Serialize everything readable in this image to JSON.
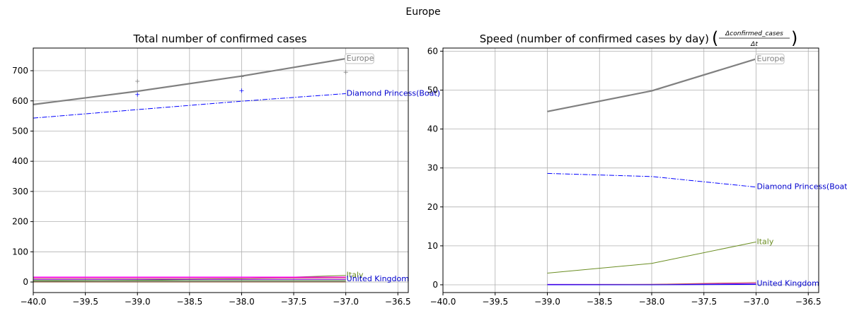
{
  "suptitle": "Europe",
  "chart_data": [
    {
      "type": "line",
      "title": "Total number of confirmed cases",
      "xlim": [
        -40.0,
        -36.4
      ],
      "ylim": [
        -35,
        775
      ],
      "xticks": [
        -40.0,
        -39.5,
        -39.0,
        -38.5,
        -38.0,
        -37.5,
        -37.0,
        -36.5
      ],
      "xtick_labels": [
        "−40.0",
        "−39.5",
        "−39.0",
        "−38.5",
        "−38.0",
        "−37.5",
        "−37.0",
        "−36.5"
      ],
      "yticks": [
        0,
        100,
        200,
        300,
        400,
        500,
        600,
        700
      ],
      "ytick_labels": [
        "0",
        "100",
        "200",
        "300",
        "400",
        "500",
        "600",
        "700"
      ],
      "grid": true,
      "series": [
        {
          "name": "Europe",
          "color": "#808080",
          "style": "solid",
          "width": 2.2,
          "x": [
            -40.0,
            -39.0,
            -38.0,
            -37.0
          ],
          "y": [
            588,
            632,
            682,
            740
          ],
          "points": {
            "x": [
              -39.0,
              -38.0,
              -37.0
            ],
            "y": [
              665,
              680,
              695
            ]
          }
        },
        {
          "name": "Diamond Princess(Boat)",
          "color": "#0000ff",
          "style": "dashdot",
          "width": 1,
          "x": [
            -40.0,
            -39.0,
            -38.0,
            -37.0
          ],
          "y": [
            543,
            571,
            599,
            624
          ],
          "points": {
            "x": [
              -39.0,
              -38.0
            ],
            "y": [
              621,
              634
            ]
          }
        },
        {
          "name": "Italy",
          "color": "#6b8e23",
          "style": "solid",
          "width": 1,
          "x": [
            -40.0,
            -39.0,
            -38.0,
            -37.0
          ],
          "y": [
            3,
            6,
            11,
            22
          ]
        },
        {
          "name": "United Kingdom",
          "color": "#9400d3",
          "style": "solid",
          "width": 1,
          "x": [
            -40.0,
            -39.0,
            -38.0,
            -37.0
          ],
          "y": [
            9,
            9,
            9,
            9
          ]
        },
        {
          "name": "",
          "color": "#ff00ff",
          "style": "solid",
          "width": 1.5,
          "x": [
            -40.0,
            -39.0,
            -38.0,
            -37.0
          ],
          "y": [
            16,
            16,
            16,
            16
          ]
        },
        {
          "name": "",
          "color": "#cd5c5c",
          "style": "solid",
          "width": 1,
          "x": [
            -40.0,
            -39.0,
            -38.0,
            -37.0
          ],
          "y": [
            12,
            12,
            12,
            14
          ]
        },
        {
          "name": "",
          "color": "#2e8b57",
          "style": "solid",
          "width": 1,
          "x": [
            -40.0,
            -39.0,
            -38.0,
            -37.0
          ],
          "y": [
            5,
            5,
            5,
            5
          ]
        },
        {
          "name": "",
          "color": "#ff8c00",
          "style": "solid",
          "width": 1,
          "x": [
            -40.0,
            -39.0,
            -38.0,
            -37.0
          ],
          "y": [
            2,
            2,
            2,
            2
          ]
        },
        {
          "name": "",
          "color": "#1e90ff",
          "style": "solid",
          "width": 1,
          "x": [
            -40.0,
            -39.0,
            -38.0,
            -37.0
          ],
          "y": [
            1,
            1,
            1,
            1
          ]
        },
        {
          "name": "",
          "color": "#8b4513",
          "style": "solid",
          "width": 1,
          "x": [
            -40.0,
            -39.0,
            -38.0,
            -37.0
          ],
          "y": [
            0,
            0,
            0,
            0
          ]
        }
      ],
      "annotations": [
        {
          "text": "Europe",
          "x": -37.0,
          "y": 740,
          "color": "#808080",
          "boxed": true
        },
        {
          "text": "Diamond Princess(Boat)",
          "x": -37.0,
          "y": 624,
          "color": "#0000cd"
        },
        {
          "text": "Italy",
          "x": -37.0,
          "y": 22,
          "color": "#6b8e23"
        },
        {
          "text": "United Kingdom",
          "x": -37.0,
          "y": 9,
          "color": "#0000cd"
        }
      ]
    },
    {
      "type": "line",
      "title": "Speed (number of confirmed cases by day)",
      "title_formula": {
        "numerator": "Δconfirmed_cases",
        "denominator": "Δt"
      },
      "xlim": [
        -40.0,
        -36.4
      ],
      "ylim": [
        -2,
        60.8
      ],
      "xticks": [
        -40.0,
        -39.5,
        -39.0,
        -38.5,
        -38.0,
        -37.5,
        -37.0,
        -36.5
      ],
      "xtick_labels": [
        "−40.0",
        "−39.5",
        "−39.0",
        "−38.5",
        "−38.0",
        "−37.5",
        "−37.0",
        "−36.5"
      ],
      "yticks": [
        0,
        10,
        20,
        30,
        40,
        50,
        60
      ],
      "ytick_labels": [
        "0",
        "10",
        "20",
        "30",
        "40",
        "50",
        "60"
      ],
      "grid": true,
      "series": [
        {
          "name": "Europe",
          "color": "#808080",
          "style": "solid",
          "width": 2.2,
          "x": [
            -39.0,
            -38.0,
            -37.0
          ],
          "y": [
            44.5,
            49.8,
            58.0
          ]
        },
        {
          "name": "Diamond Princess(Boat)",
          "color": "#0000ff",
          "style": "dashdot",
          "width": 1,
          "x": [
            -39.0,
            -38.0,
            -37.0
          ],
          "y": [
            28.6,
            27.8,
            25.1
          ]
        },
        {
          "name": "Italy",
          "color": "#6b8e23",
          "style": "solid",
          "width": 1,
          "x": [
            -39.0,
            -38.0,
            -37.0
          ],
          "y": [
            3.0,
            5.5,
            11.0
          ]
        },
        {
          "name": "United Kingdom",
          "color": "#9400d3",
          "style": "solid",
          "width": 1,
          "x": [
            -39.0,
            -38.0,
            -37.0
          ],
          "y": [
            0.1,
            0.1,
            0.3
          ]
        },
        {
          "name": "",
          "color": "#cd5c5c",
          "style": "solid",
          "width": 1,
          "x": [
            -39.0,
            -38.0,
            -37.0
          ],
          "y": [
            0,
            0.1,
            0.6
          ]
        },
        {
          "name": "",
          "color": "#0000ff",
          "style": "solid",
          "width": 1,
          "x": [
            -39.0,
            -38.0,
            -37.0
          ],
          "y": [
            0,
            0,
            0.1
          ]
        }
      ],
      "annotations": [
        {
          "text": "Europe",
          "x": -37.0,
          "y": 58.0,
          "color": "#808080",
          "boxed": true
        },
        {
          "text": "Diamond Princess(Boat)",
          "x": -37.0,
          "y": 25.1,
          "color": "#0000cd"
        },
        {
          "text": "Italy",
          "x": -37.0,
          "y": 11.0,
          "color": "#6b8e23"
        },
        {
          "text": "United Kingdom",
          "x": -37.0,
          "y": 0.3,
          "color": "#0000cd"
        }
      ]
    }
  ]
}
